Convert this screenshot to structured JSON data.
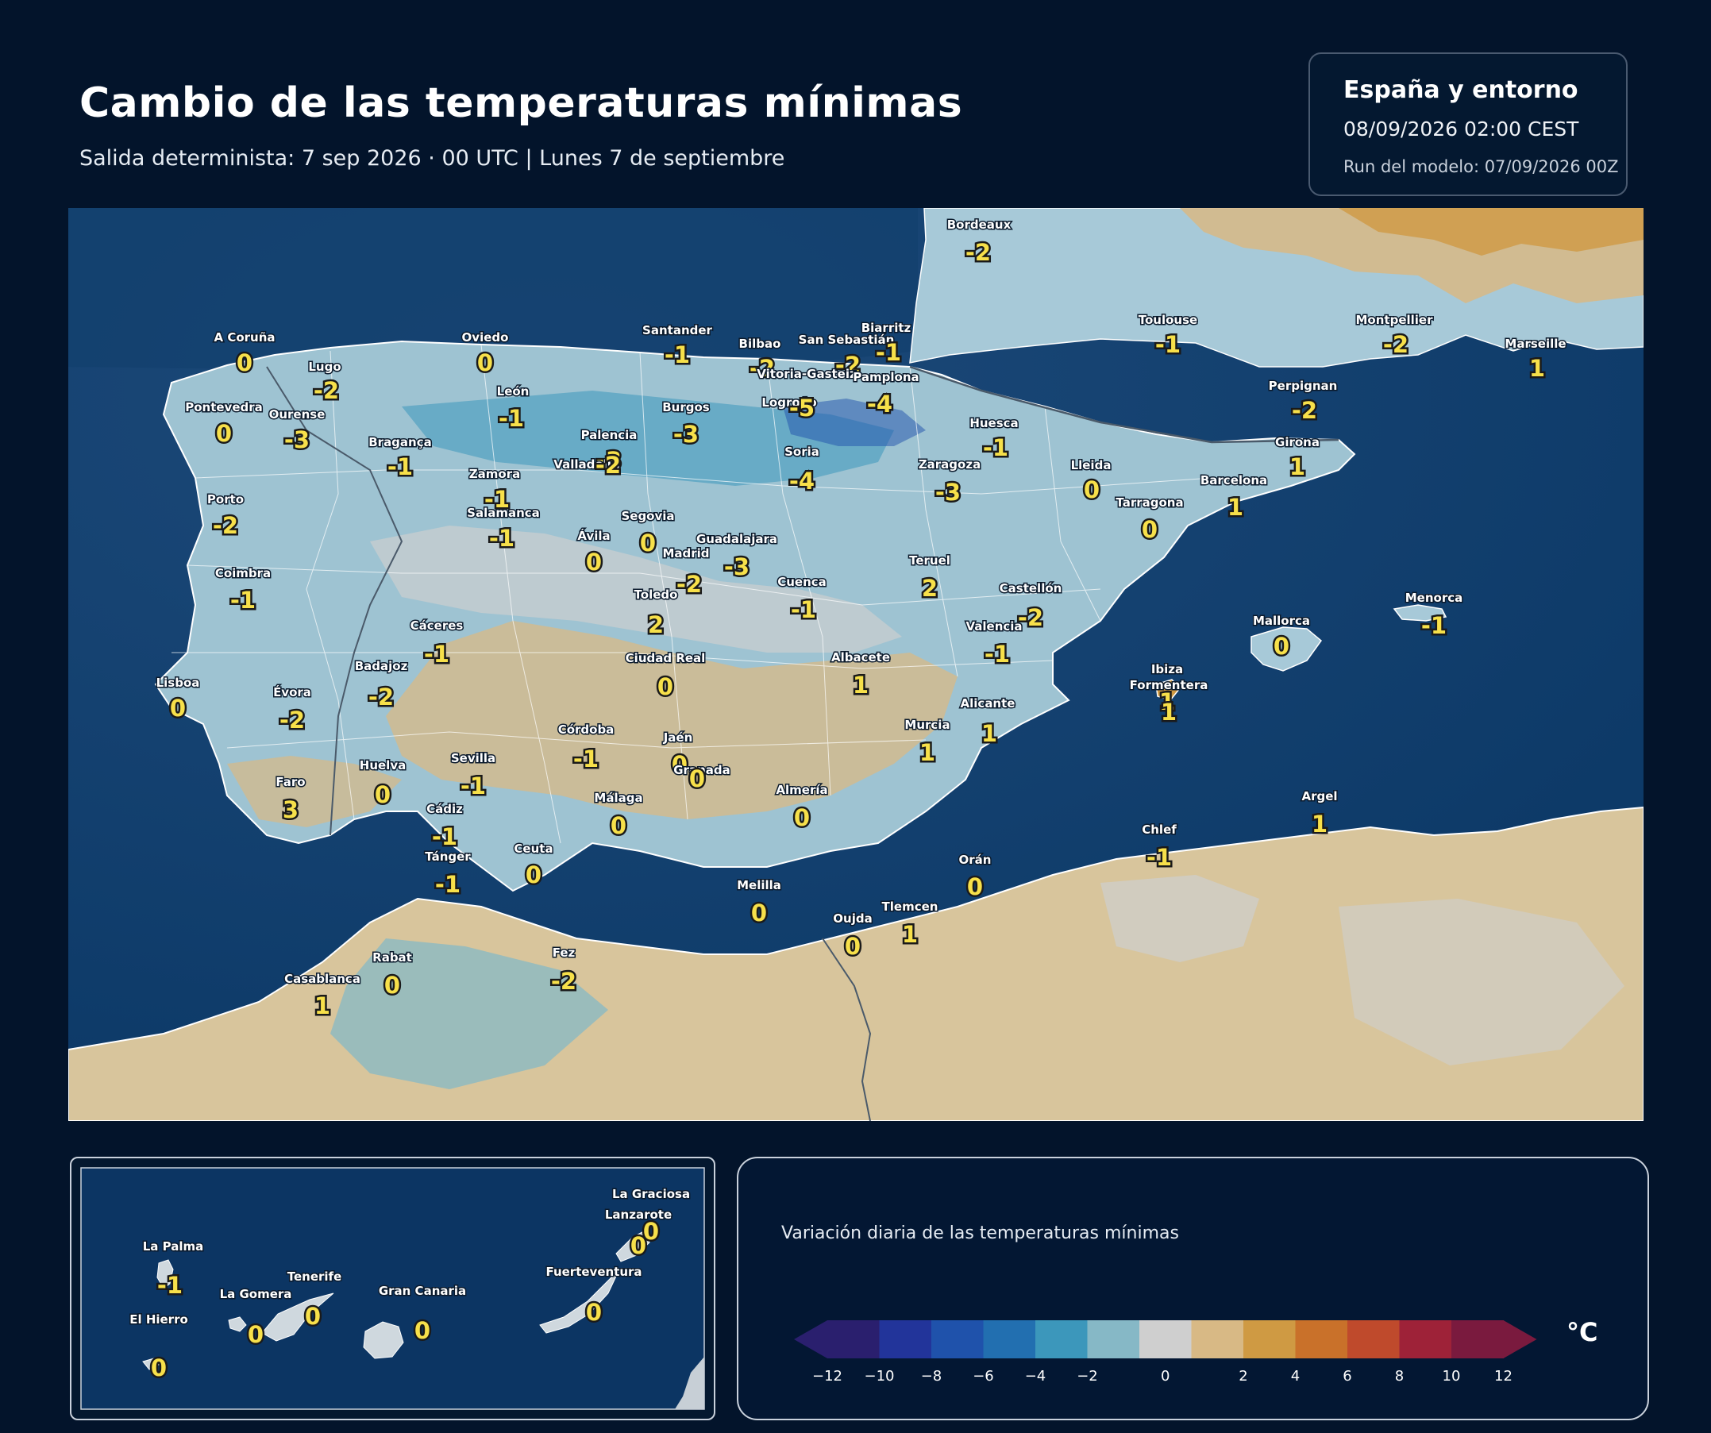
{
  "header": {
    "title": "Cambio de las temperaturas mínimas",
    "subtitle": "Salida determinista: 7 sep 2026 · 00 UTC  |  Lunes 7 de septiembre"
  },
  "info": {
    "region": "España y entorno",
    "datetime": "08/09/2026  02:00 CEST",
    "run": "Run del modelo: 07/09/2026 00Z"
  },
  "legend": {
    "title": "Variación diaria de las temperaturas mínimas",
    "unit": "°C",
    "ticks": [
      "−12",
      "−10",
      "−8",
      "−6",
      "−4",
      "−2",
      "0",
      "2",
      "4",
      "6",
      "8",
      "10",
      "12"
    ],
    "colors": [
      "#2a1f6e",
      "#22349a",
      "#1f52ab",
      "#226fb0",
      "#3c97bb",
      "#86b8c6",
      "#cfcfcf",
      "#d8b985",
      "#cf9a43",
      "#c9712a",
      "#bf4a2c",
      "#9e2238",
      "#7a1a3e"
    ]
  },
  "map": {
    "cities": [
      {
        "name": "Bordeaux",
        "value": "-2"
      },
      {
        "name": "Toulouse",
        "value": "-1"
      },
      {
        "name": "Montpellier",
        "value": "-2"
      },
      {
        "name": "Marseille",
        "value": "1"
      },
      {
        "name": "A Coruña",
        "value": "0"
      },
      {
        "name": "Oviedo",
        "value": "0"
      },
      {
        "name": "Santander",
        "value": "-1"
      },
      {
        "name": "Bilbao",
        "value": "-2"
      },
      {
        "name": "San Sebastián",
        "value": "-2"
      },
      {
        "name": "Biarritz",
        "value": "-1"
      },
      {
        "name": "Lugo",
        "value": "-2"
      },
      {
        "name": "Vitoria-Gasteiz",
        "value": ""
      },
      {
        "name": "Pamplona",
        "value": "-4"
      },
      {
        "name": "Perpignan",
        "value": "-2"
      },
      {
        "name": "Pontevedra",
        "value": "0"
      },
      {
        "name": "Ourense",
        "value": "-3"
      },
      {
        "name": "León",
        "value": "-1"
      },
      {
        "name": "Burgos",
        "value": "-3"
      },
      {
        "name": "Logroño",
        "value": "-5"
      },
      {
        "name": "Huesca",
        "value": "-1"
      },
      {
        "name": "Girona",
        "value": "1"
      },
      {
        "name": "Bragança",
        "value": "-1"
      },
      {
        "name": "Palencia",
        "value": "-3"
      },
      {
        "name": "Valladolid",
        "value": "-2"
      },
      {
        "name": "Soria",
        "value": "-4"
      },
      {
        "name": "Zaragoza",
        "value": "-3"
      },
      {
        "name": "Lleida",
        "value": "0"
      },
      {
        "name": "Barcelona",
        "value": "1"
      },
      {
        "name": "Zamora",
        "value": "-1"
      },
      {
        "name": "Porto",
        "value": "-2"
      },
      {
        "name": "Salamanca",
        "value": "-1"
      },
      {
        "name": "Segovia",
        "value": "0"
      },
      {
        "name": "Tarragona",
        "value": "0"
      },
      {
        "name": "Ávila",
        "value": "0"
      },
      {
        "name": "Guadalajara",
        "value": "-3"
      },
      {
        "name": "Madrid",
        "value": "-2"
      },
      {
        "name": "Teruel",
        "value": "2"
      },
      {
        "name": "Coimbra",
        "value": "-1"
      },
      {
        "name": "Cuenca",
        "value": "-1"
      },
      {
        "name": "Toledo",
        "value": "2"
      },
      {
        "name": "Castellón",
        "value": "-2"
      },
      {
        "name": "Menorca",
        "value": "-1"
      },
      {
        "name": "Mallorca",
        "value": "0"
      },
      {
        "name": "Cáceres",
        "value": "-1"
      },
      {
        "name": "Valencia",
        "value": "-1"
      },
      {
        "name": "Ciudad Real",
        "value": "0"
      },
      {
        "name": "Albacete",
        "value": "1"
      },
      {
        "name": "Lisboa",
        "value": "0"
      },
      {
        "name": "Badajoz",
        "value": "-2"
      },
      {
        "name": "Ibiza",
        "value": "1"
      },
      {
        "name": "Formentera",
        "value": "1"
      },
      {
        "name": "Évora",
        "value": "-2"
      },
      {
        "name": "Alicante",
        "value": "1"
      },
      {
        "name": "Murcia",
        "value": "1"
      },
      {
        "name": "Córdoba",
        "value": "-1"
      },
      {
        "name": "Jaén",
        "value": "0"
      },
      {
        "name": "Huelva",
        "value": "0"
      },
      {
        "name": "Sevilla",
        "value": "-1"
      },
      {
        "name": "Granada",
        "value": "0"
      },
      {
        "name": "Faro",
        "value": "3"
      },
      {
        "name": "Almería",
        "value": "0"
      },
      {
        "name": "Málaga",
        "value": "0"
      },
      {
        "name": "Cádiz",
        "value": "-1"
      },
      {
        "name": "Argel",
        "value": "1"
      },
      {
        "name": "Chlef",
        "value": "-1"
      },
      {
        "name": "Tánger",
        "value": "-1"
      },
      {
        "name": "Ceuta",
        "value": "0"
      },
      {
        "name": "Orán",
        "value": "0"
      },
      {
        "name": "Melilla",
        "value": "0"
      },
      {
        "name": "Tlemcen",
        "value": "1"
      },
      {
        "name": "Oujda",
        "value": "0"
      },
      {
        "name": "Rabat",
        "value": "0"
      },
      {
        "name": "Fez",
        "value": "-2"
      },
      {
        "name": "Casablanca",
        "value": "1"
      }
    ]
  },
  "inset": {
    "cities": [
      {
        "name": "La Graciosa",
        "value": "0"
      },
      {
        "name": "Lanzarote",
        "value": "0"
      },
      {
        "name": "La Palma",
        "value": "-1"
      },
      {
        "name": "Tenerife",
        "value": "0"
      },
      {
        "name": "Fuerteventura",
        "value": "0"
      },
      {
        "name": "La Gomera",
        "value": "0"
      },
      {
        "name": "Gran Canaria",
        "value": "0"
      },
      {
        "name": "El Hierro",
        "value": "0"
      }
    ]
  }
}
